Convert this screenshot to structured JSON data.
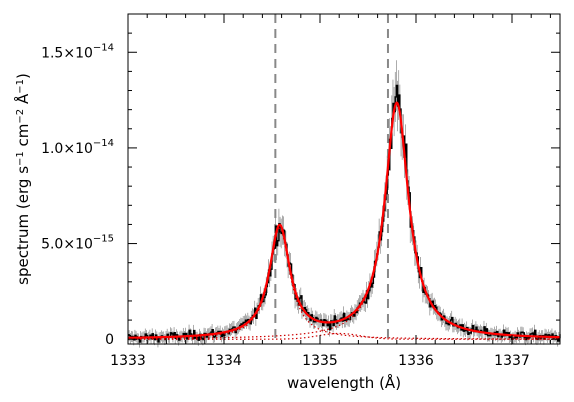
{
  "chart_data": {
    "type": "line",
    "title": "",
    "xlabel": "wavelength (Å)",
    "ylabel_parts": {
      "prefix": "spectrum (erg s",
      "exp1": "−1",
      "mid1": " cm",
      "exp2": "−2",
      "mid2": " Å",
      "exp3": "−1",
      "suffix": ")"
    },
    "xlim": [
      1333.0,
      1337.5
    ],
    "ylim": [
      -2.5e-16,
      1.7e-14
    ],
    "x_ticks": [
      {
        "value": 1333,
        "label": "1333"
      },
      {
        "value": 1334,
        "label": "1334"
      },
      {
        "value": 1335,
        "label": "1335"
      },
      {
        "value": 1336,
        "label": "1336"
      },
      {
        "value": 1337,
        "label": "1337"
      }
    ],
    "y_ticks": [
      {
        "value": 0,
        "mantissa": "0",
        "exponent": ""
      },
      {
        "value": 5e-15,
        "mantissa": "5.0×10",
        "exponent": "−15"
      },
      {
        "value": 1e-14,
        "mantissa": "1.0×10",
        "exponent": "−14"
      },
      {
        "value": 1.5e-14,
        "mantissa": "1.5×10",
        "exponent": "−14"
      }
    ],
    "vertical_lines": [
      1334.535,
      1335.708
    ],
    "fit_components": [
      {
        "center": 1334.58,
        "amplitude": 5.8e-15,
        "width": 0.13
      },
      {
        "center": 1335.8,
        "amplitude": 1.23e-14,
        "width": 0.15
      }
    ],
    "secondary_component": {
      "center": 1335.2,
      "amplitude": 3e-16,
      "sigma": 0.22
    },
    "grid": false,
    "legend": "none",
    "colors": {
      "data": "#000000",
      "errors": "#888888",
      "fit": "#ff0000",
      "components": "#cc0000",
      "vlines": "#888888",
      "axes": "#000000"
    }
  }
}
